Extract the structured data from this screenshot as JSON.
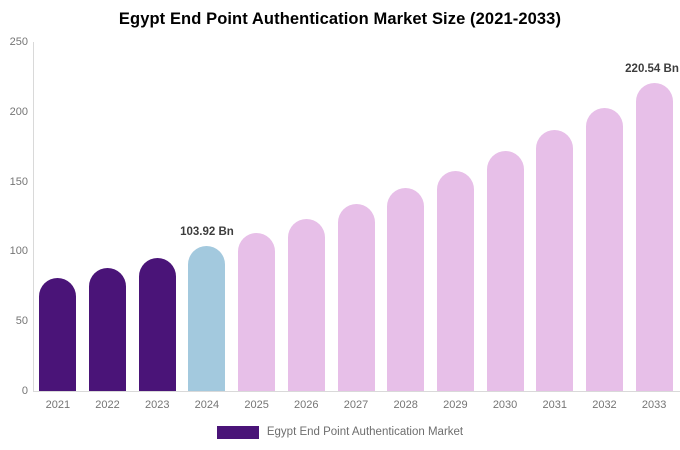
{
  "chart_data": {
    "type": "bar",
    "title": "Egypt End Point Authentication Market Size (2021-2033)",
    "categories": [
      "2021",
      "2022",
      "2023",
      "2024",
      "2025",
      "2026",
      "2027",
      "2028",
      "2029",
      "2030",
      "2031",
      "2032",
      "2033"
    ],
    "values": [
      80.9,
      87.9,
      95.6,
      103.92,
      113.0,
      122.9,
      133.6,
      145.2,
      157.9,
      171.7,
      186.7,
      202.9,
      220.54
    ],
    "unit": "Bn",
    "xlabel": "",
    "ylabel": "",
    "ylim": [
      0,
      250
    ],
    "yticks": [
      0,
      50,
      100,
      150,
      200,
      250
    ],
    "grid": false,
    "legend_position": "bottom",
    "legend": {
      "label": "Egypt End Point Authentication Market",
      "swatch_color": "#4A1478"
    },
    "bar_colors": [
      "#4A1478",
      "#4A1478",
      "#4A1478",
      "#A3C9DE",
      "#E7BFE8",
      "#E7BFE8",
      "#E7BFE8",
      "#E7BFE8",
      "#E7BFE8",
      "#E7BFE8",
      "#E7BFE8",
      "#E7BFE8",
      "#E7BFE8"
    ],
    "annotations": [
      {
        "category": "2024",
        "text": "103.92 Bn"
      },
      {
        "category": "2033",
        "text": "220.54 Bn"
      }
    ],
    "colors": {
      "historical_bar": "#4A1478",
      "highlight_bar": "#A3C9DE",
      "forecast_bar": "#E7BFE8",
      "axis_line": "#D9D9D9",
      "tick_label": "#757575",
      "annotation_text": "#3D3D3D",
      "title_text": "#000000",
      "legend_text": "#6E6E6E",
      "background": "#FFFFFF"
    }
  }
}
